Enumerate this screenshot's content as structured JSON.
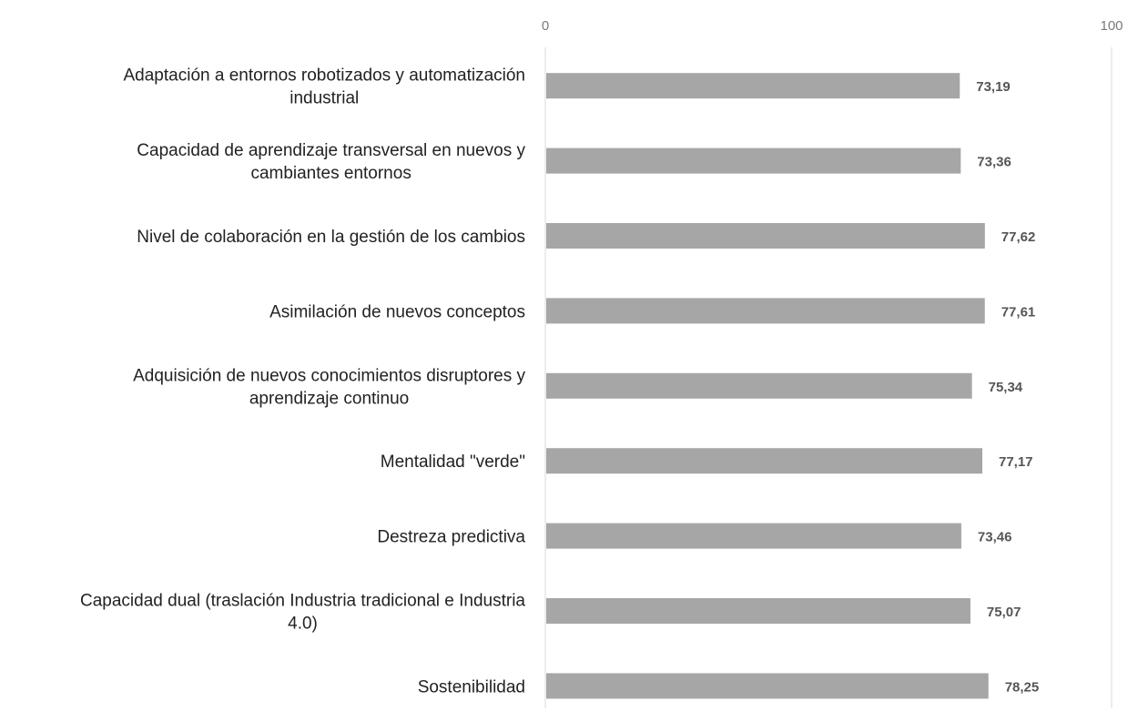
{
  "chart_data": {
    "type": "bar",
    "orientation": "horizontal",
    "categories": [
      "Adaptación a entornos robotizados y automatización industrial",
      "Capacidad de aprendizaje transversal en nuevos y cambiantes entornos",
      "Nivel de colaboración en la gestión de los cambios",
      "Asimilación de nuevos conceptos",
      "Adquisición de nuevos conocimientos disruptores y aprendizaje continuo",
      "Mentalidad \"verde\"",
      "Destreza predictiva",
      "Capacidad dual (traslación Industria tradicional e Industria 4.0)",
      "Sostenibilidad"
    ],
    "category_lines": [
      [
        "Adaptación a entornos robotizados y automatización",
        "industrial"
      ],
      [
        "Capacidad de aprendizaje transversal en nuevos y",
        "cambiantes entornos"
      ],
      [
        "Nivel de colaboración en la gestión de los cambios"
      ],
      [
        "Asimilación de nuevos conceptos"
      ],
      [
        "Adquisición de nuevos conocimientos disruptores y",
        "aprendizaje continuo"
      ],
      [
        "Mentalidad \"verde\""
      ],
      [
        "Destreza predictiva"
      ],
      [
        "Capacidad dual (traslación Industria tradicional e Industria",
        "4.0)"
      ],
      [
        "Sostenibilidad"
      ]
    ],
    "values": [
      73.19,
      73.36,
      77.62,
      77.61,
      75.34,
      77.17,
      73.46,
      75.07,
      78.25
    ],
    "value_labels": [
      "73,19",
      "73,36",
      "77,62",
      "77,61",
      "75,34",
      "77,17",
      "73,46",
      "75,07",
      "78,25"
    ],
    "xlim": [
      0,
      100
    ],
    "ticks": [
      0,
      100
    ],
    "tick_labels": [
      "0",
      "100"
    ],
    "axis_position": "top",
    "title": "",
    "xlabel": "",
    "ylabel": "",
    "grid": false,
    "legend": "none",
    "bar_color": "#a6a6a6",
    "axis_line_color": "#d9d9d9"
  }
}
